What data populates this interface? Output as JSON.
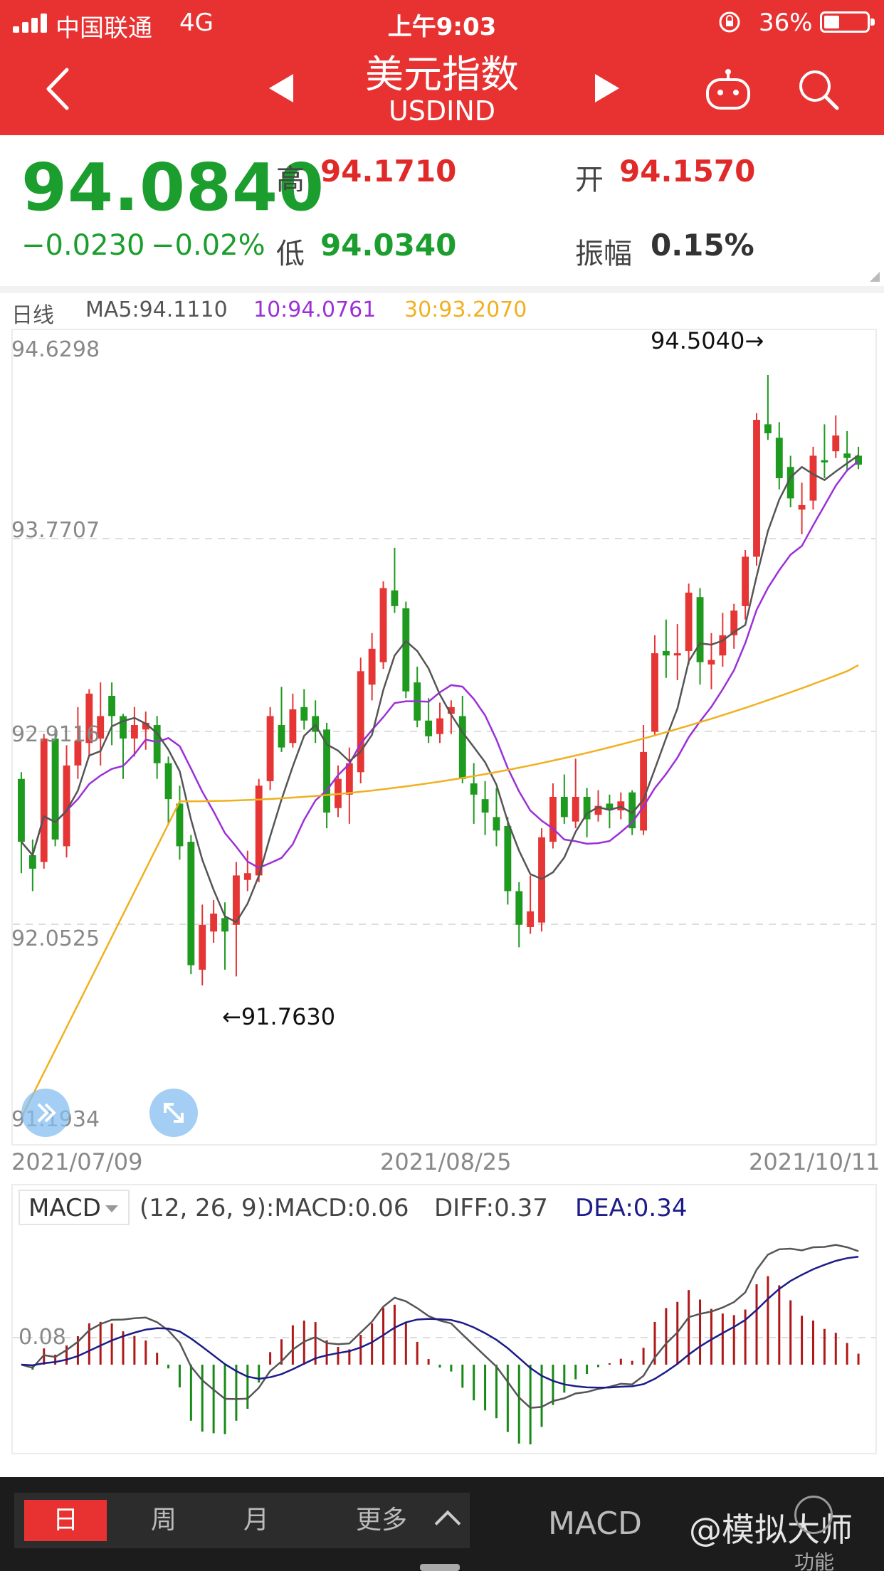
{
  "status_bar": {
    "carrier": "中国联通",
    "network": "4G",
    "time": "上午9:03",
    "battery": "36%",
    "battery_level": 0.36
  },
  "header": {
    "title": "美元指数",
    "subtitle": "USDIND",
    "background": "#e83232"
  },
  "quote": {
    "price": "94.0840",
    "change": "−0.0230",
    "change_pct": "−0.02%",
    "high_label": "高",
    "high": "94.1710",
    "low_label": "低",
    "low": "94.0340",
    "open_label": "开",
    "open": "94.1570",
    "amplitude_label": "振幅",
    "amplitude": "0.15%"
  },
  "ma_legend": {
    "period": "日线",
    "ma5": "MA5:94.1110",
    "ma10": "10:94.0761",
    "ma30": "30:93.2070",
    "colors": {
      "ma5": "#555555",
      "ma10": "#9b30d8",
      "ma30": "#f0b020"
    }
  },
  "kline": {
    "y_labels": [
      "94.6298",
      "93.7707",
      "92.9116",
      "92.0525",
      "91.1934"
    ],
    "dates": [
      "2021/07/09",
      "2021/08/25",
      "2021/10/11"
    ],
    "max_label": "94.5040→",
    "min_label": "←91.7630",
    "up_color": "#e53535",
    "down_color": "#1e9a1e"
  },
  "macd": {
    "selector": "MACD",
    "params": "(12, 26, 9):MACD:0.06",
    "diff": "DIFF:0.37",
    "dea": "DEA:0.34",
    "level_label": "0.08"
  },
  "bottom_bar": {
    "tab_day": "日",
    "tab_week": "周",
    "tab_month": "月",
    "more": "更多",
    "indicator": "MACD",
    "watermark": "@模拟大师",
    "function": "功能"
  },
  "chart_data": [
    {
      "type": "candlestick",
      "title": "",
      "ylim": [
        91.1934,
        94.6298
      ],
      "y_ticks": [
        94.6298,
        93.7707,
        92.9116,
        92.0525,
        91.1934
      ],
      "x_labels": [
        "2021/07/09",
        "2021/08/25",
        "2021/10/11"
      ],
      "series": [
        {
          "name": "MA5",
          "last": 94.111
        },
        {
          "name": "10",
          "last": 94.0761
        },
        {
          "name": "30",
          "last": 93.207
        }
      ],
      "annotations": [
        "94.5040→",
        "←91.7630"
      ],
      "high_point": 94.504,
      "low_point": 91.763,
      "candles": [
        [
          92.7,
          92.42,
          92.73,
          92.28
        ],
        [
          92.36,
          92.3,
          92.43,
          92.2
        ],
        [
          92.33,
          92.88,
          92.9,
          92.3
        ],
        [
          92.88,
          92.43,
          92.92,
          92.4
        ],
        [
          92.4,
          92.76,
          92.85,
          92.35
        ],
        [
          92.76,
          92.87,
          93.02,
          92.7
        ],
        [
          92.86,
          93.08,
          93.1,
          92.8
        ],
        [
          92.88,
          92.98,
          93.13,
          92.76
        ],
        [
          93.07,
          92.98,
          93.13,
          92.85
        ],
        [
          92.98,
          92.88,
          92.99,
          92.7
        ],
        [
          92.88,
          92.94,
          93.02,
          92.8
        ],
        [
          92.92,
          92.95,
          93.0,
          92.83
        ],
        [
          92.94,
          92.77,
          92.98,
          92.7
        ],
        [
          92.77,
          92.61,
          92.8,
          92.5
        ],
        [
          92.59,
          92.4,
          92.67,
          92.34
        ],
        [
          92.42,
          91.87,
          92.45,
          91.83
        ],
        [
          91.85,
          92.05,
          92.14,
          91.78
        ],
        [
          92.02,
          92.1,
          92.16,
          91.97
        ],
        [
          92.08,
          92.02,
          92.15,
          91.85
        ],
        [
          92.05,
          92.27,
          92.33,
          91.82
        ],
        [
          92.25,
          92.28,
          92.38,
          92.2
        ],
        [
          92.27,
          92.67,
          92.7,
          92.24
        ],
        [
          92.69,
          92.98,
          93.02,
          92.65
        ],
        [
          92.94,
          92.84,
          93.11,
          92.82
        ],
        [
          92.86,
          93.01,
          93.08,
          92.84
        ],
        [
          93.02,
          92.96,
          93.1,
          92.92
        ],
        [
          92.98,
          92.91,
          93.05,
          92.86
        ],
        [
          92.92,
          92.55,
          92.95,
          92.48
        ],
        [
          92.57,
          92.7,
          92.76,
          92.53
        ],
        [
          92.63,
          92.77,
          92.84,
          92.5
        ],
        [
          92.73,
          93.18,
          93.24,
          92.68
        ],
        [
          93.12,
          93.28,
          93.35,
          93.05
        ],
        [
          93.22,
          93.55,
          93.58,
          93.19
        ],
        [
          93.54,
          93.47,
          93.73,
          93.44
        ],
        [
          93.46,
          93.09,
          93.49,
          93.06
        ],
        [
          93.13,
          92.96,
          93.2,
          92.93
        ],
        [
          92.96,
          92.89,
          93.06,
          92.86
        ],
        [
          92.9,
          92.97,
          93.04,
          92.86
        ],
        [
          92.99,
          93.02,
          93.05,
          92.9
        ],
        [
          92.98,
          92.7,
          93.07,
          92.68
        ],
        [
          92.68,
          92.63,
          92.77,
          92.5
        ],
        [
          92.61,
          92.55,
          92.69,
          92.45
        ],
        [
          92.53,
          92.47,
          92.66,
          92.4
        ],
        [
          92.49,
          92.2,
          92.53,
          92.14
        ],
        [
          92.2,
          92.05,
          92.24,
          91.95
        ],
        [
          92.04,
          92.11,
          92.27,
          92.01
        ],
        [
          92.06,
          92.44,
          92.48,
          92.02
        ],
        [
          92.42,
          92.62,
          92.68,
          92.39
        ],
        [
          92.62,
          92.53,
          92.72,
          92.5
        ],
        [
          92.51,
          92.62,
          92.79,
          92.48
        ],
        [
          92.62,
          92.52,
          92.66,
          92.44
        ],
        [
          92.54,
          92.58,
          92.65,
          92.51
        ],
        [
          92.59,
          92.56,
          92.63,
          92.48
        ],
        [
          92.56,
          92.6,
          92.64,
          92.52
        ],
        [
          92.64,
          92.48,
          92.65,
          92.45
        ],
        [
          92.47,
          92.82,
          92.94,
          92.45
        ],
        [
          92.91,
          93.26,
          93.34,
          92.89
        ],
        [
          93.27,
          93.25,
          93.41,
          93.15
        ],
        [
          93.25,
          93.26,
          93.39,
          93.14
        ],
        [
          93.27,
          93.53,
          93.57,
          93.21
        ],
        [
          93.51,
          93.22,
          93.55,
          93.12
        ],
        [
          93.21,
          93.23,
          93.35,
          93.1
        ],
        [
          93.25,
          93.34,
          93.44,
          93.2
        ],
        [
          93.34,
          93.45,
          93.48,
          93.28
        ],
        [
          93.47,
          93.69,
          93.72,
          93.41
        ],
        [
          93.69,
          94.3,
          94.33,
          93.65
        ],
        [
          94.28,
          94.24,
          94.5,
          94.21
        ],
        [
          94.22,
          94.04,
          94.29,
          93.99
        ],
        [
          94.09,
          93.95,
          94.14,
          93.91
        ],
        [
          93.9,
          93.92,
          94.02,
          93.79
        ],
        [
          93.94,
          94.14,
          94.18,
          93.9
        ],
        [
          94.12,
          94.11,
          94.28,
          94.04
        ],
        [
          94.16,
          94.23,
          94.32,
          94.13
        ],
        [
          94.15,
          94.13,
          94.25,
          94.07
        ],
        [
          94.14,
          94.1,
          94.18,
          94.08
        ]
      ]
    },
    {
      "type": "bar",
      "title": "MACD",
      "params": "(12, 26, 9)",
      "macd": 0.06,
      "diff": 0.37,
      "dea": 0.34,
      "level": 0.08
    }
  ]
}
